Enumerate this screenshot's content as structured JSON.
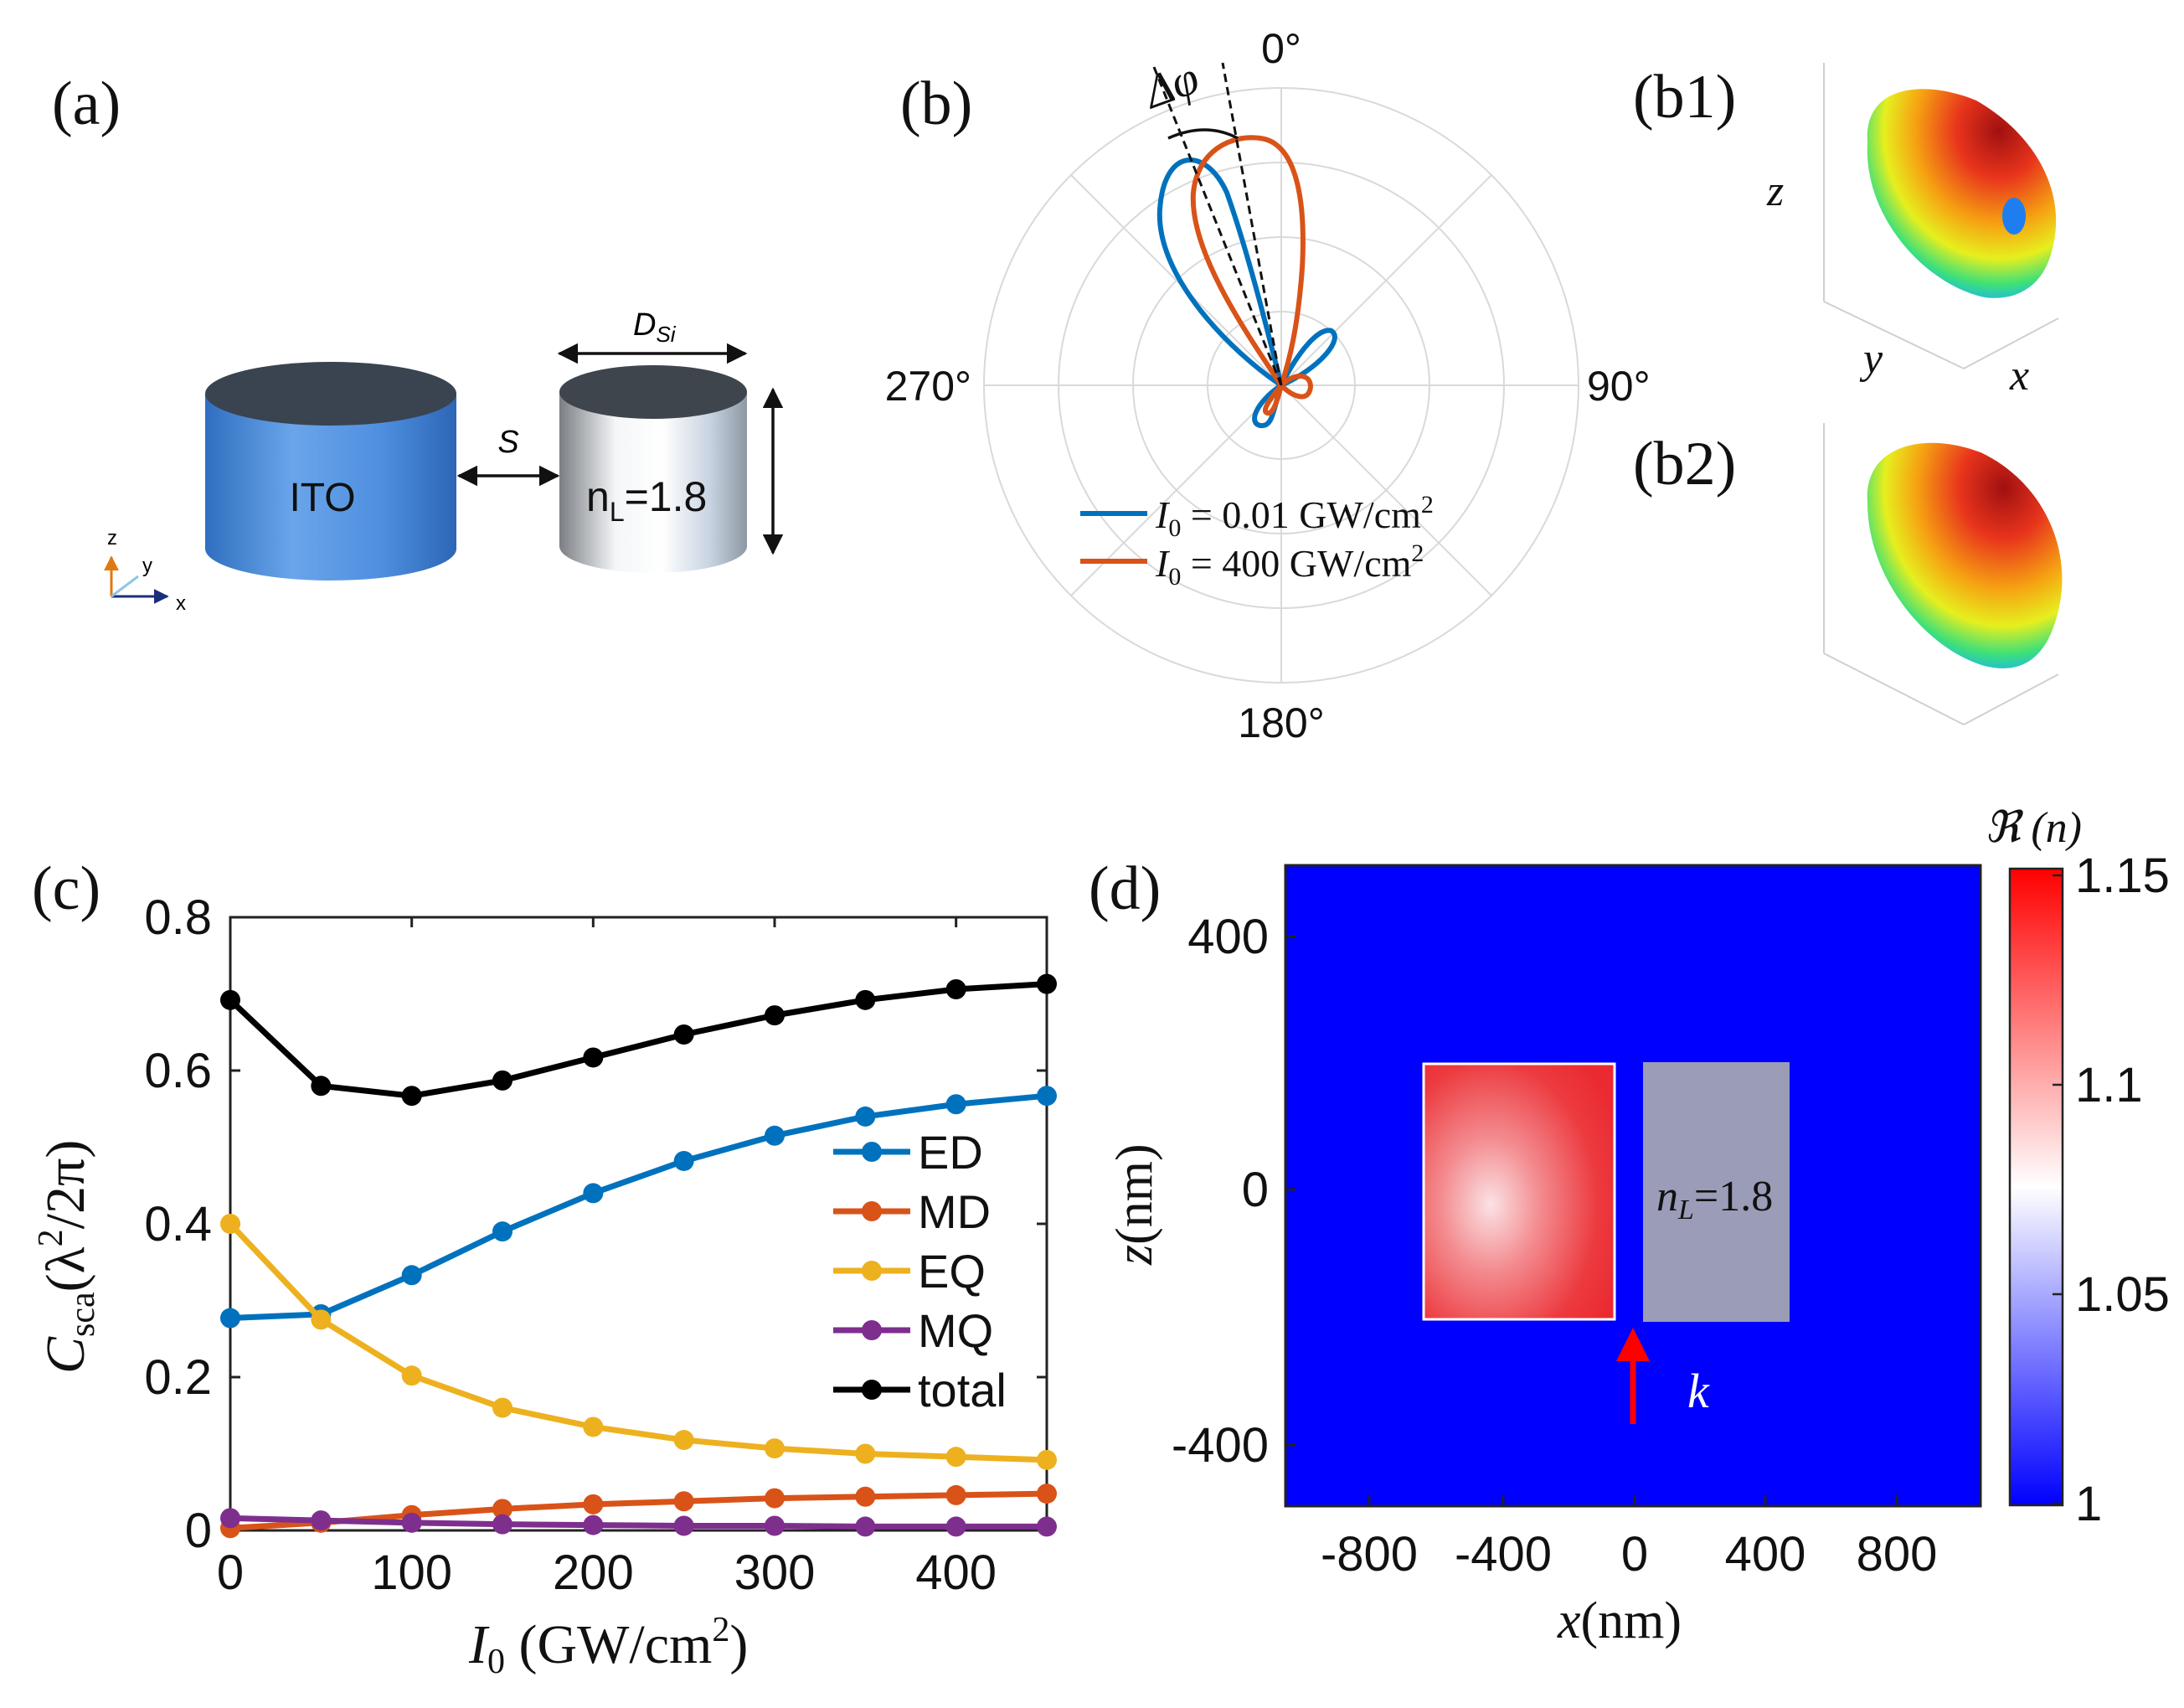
{
  "panels": {
    "a": {
      "label": "(a)",
      "ito": "ITO",
      "gap": "S",
      "diameter": "D",
      "diameter_sub": "Si",
      "lens": "n",
      "lens_sub": "L",
      "lens_val": "=1.8",
      "axes": {
        "z": "z",
        "y": "y",
        "x": "x"
      }
    },
    "b": {
      "label": "(b)",
      "delta_phi": "Δφ",
      "angles": {
        "top": "0°",
        "right": "90°",
        "bottom": "180°",
        "left": "270°"
      }
    },
    "b1": {
      "label": "(b1)",
      "axes": {
        "z": "z",
        "y": "y",
        "x": "x"
      }
    },
    "b2": {
      "label": "(b2)"
    },
    "c": {
      "label": "(c)"
    },
    "d": {
      "label": "(d)",
      "lens_text": "n",
      "lens_sub": "L",
      "lens_val": "=1.8",
      "k": "k",
      "cbar_title": "ℜ (n)"
    }
  },
  "chart_data": [
    {
      "panel": "b",
      "type": "polar",
      "series": [
        {
          "name": "I0 = 0.01 GW/cm2",
          "legend_main": "I",
          "legend_sub": "0",
          "legend_rest": " = 0.01 GW/cm",
          "legend_sup": "2",
          "color": "#0072BD"
        },
        {
          "name": "I0 = 400 GW/cm2",
          "legend_main": "I",
          "legend_sub": "0",
          "legend_rest": " = 400 GW/cm",
          "legend_sup": "2",
          "color": "#D95319"
        }
      ]
    },
    {
      "panel": "c",
      "type": "line",
      "x": [
        0,
        50,
        100,
        150,
        200,
        250,
        300,
        350,
        400,
        450
      ],
      "series": [
        {
          "name": "ED",
          "color": "#0072BD",
          "values": [
            0.277,
            0.282,
            0.333,
            0.39,
            0.44,
            0.482,
            0.515,
            0.54,
            0.556,
            0.567
          ]
        },
        {
          "name": "MD",
          "color": "#D95319",
          "values": [
            0.003,
            0.01,
            0.02,
            0.028,
            0.034,
            0.038,
            0.042,
            0.044,
            0.046,
            0.048
          ]
        },
        {
          "name": "EQ",
          "color": "#EDB120",
          "values": [
            0.4,
            0.275,
            0.202,
            0.16,
            0.135,
            0.118,
            0.107,
            0.1,
            0.096,
            0.092
          ]
        },
        {
          "name": "MQ",
          "color": "#7E2F8E",
          "values": [
            0.016,
            0.013,
            0.01,
            0.008,
            0.007,
            0.006,
            0.006,
            0.005,
            0.005,
            0.005
          ]
        },
        {
          "name": "total",
          "color": "#000000",
          "values": [
            0.692,
            0.58,
            0.567,
            0.587,
            0.617,
            0.647,
            0.672,
            0.692,
            0.706,
            0.713
          ]
        }
      ],
      "xlim": [
        0,
        450
      ],
      "ylim": [
        0,
        0.8
      ],
      "xticks": [
        "0",
        "100",
        "200",
        "300",
        "400"
      ],
      "yticks": [
        "0",
        "0.2",
        "0.4",
        "0.6",
        "0.8"
      ],
      "xlabel": {
        "main": "I",
        "sub": "0",
        "rest": " (GW/cm",
        "sup": "2",
        "close": ")"
      },
      "ylabel": {
        "main": "C",
        "sub": "sca",
        "rest": "(λ",
        "sup": "2",
        "close": "/2π)"
      },
      "legend_position": "right"
    },
    {
      "panel": "d",
      "type": "heatmap",
      "xticks": [
        "-800",
        "-400",
        "0",
        "400",
        "800"
      ],
      "yticks": [
        "400",
        "0",
        "-400"
      ],
      "xlabel": {
        "main": "x",
        "rest": "(nm)"
      },
      "ylabel": {
        "main": "z",
        "rest": "(nm)"
      },
      "colorbar_ticks": [
        "1.15",
        "1.1",
        "1.05",
        "1"
      ],
      "clim": [
        1,
        1.15
      ]
    }
  ]
}
